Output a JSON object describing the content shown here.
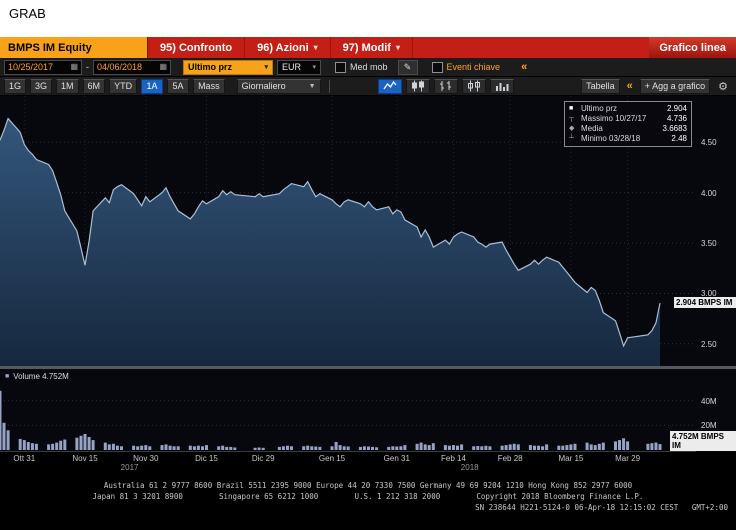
{
  "window": {
    "grab_label": "GRAB"
  },
  "colors": {
    "menu_red": "#c31f17",
    "security_amber": "#f7a219",
    "accent_amber": "#ffa028",
    "selected_blue": "#1a63c4",
    "area_top": "#33567b",
    "area_bottom": "#16283e",
    "line": "#a9c0d6",
    "volume_bar": "#97a3c4",
    "grid": "#30303c"
  },
  "icons": {
    "chevron_down_small": "▾",
    "chevron_down": "▼",
    "collapse": "«",
    "gear": "⚙",
    "pencil": "✎",
    "calendar": "▦",
    "plus": "+"
  },
  "menu_bar": {
    "security": "BMPS IM Equity",
    "items": [
      {
        "label": "95) Confronto"
      },
      {
        "label": "96) Azioni"
      },
      {
        "label": "97) Modif"
      }
    ],
    "right_label": "Grafico linea"
  },
  "toolbar": {
    "date_from": "10/25/2017",
    "date_separator": "-",
    "date_to": "04/06/2018",
    "price_field": "Ultimo prz",
    "currency": "EUR",
    "med_mob_label": "Med mob",
    "eventi_label": "Eventi chiave"
  },
  "period_bar": {
    "periods": [
      "1G",
      "3G",
      "1M",
      "6M",
      "YTD",
      "1A",
      "5A",
      "Mass"
    ],
    "selected_period": "1A",
    "frequency": "Giornaliero",
    "table_label": "Tabella",
    "add_chart_label": "Agg a grafico"
  },
  "chart": {
    "legend": [
      {
        "marker": "■",
        "label": "Ultimo prz",
        "value": "2.904"
      },
      {
        "marker": "┬",
        "label": "Massimo 10/27/17",
        "value": "4.736"
      },
      {
        "marker": "◆",
        "label": "Media",
        "value": "3.6683"
      },
      {
        "marker": "┴",
        "label": "Minimo 03/28/18",
        "value": "2.48"
      }
    ],
    "last_price_tag": "2.904 BMPS IM"
  },
  "volume_panel": {
    "marker": "■",
    "legend": "Volume 4.752M",
    "tag": "4.752M BMPS IM"
  },
  "footer": {
    "line1": "Australia 61 2 9777 8600 Brazil 5511 2395 9000 Europe 44 20 7330 7500 Germany 49 69 9204 1210 Hong Kong 852 2977 6000",
    "line2": "Japan 81 3 3201 8900        Singapore 65 6212 1000        U.S. 1 212 318 2000        Copyright 2018 Bloomberg Finance L.P.",
    "line3": "SN 238644 H221-5124-0 06-Apr-18 12:15:02 CEST   GMT+2:00"
  },
  "chart_data": {
    "type": "line",
    "title": "BMPS IM Equity — Grafico linea",
    "x_range": [
      "2017-10-25",
      "2018-04-06"
    ],
    "y_domain": [
      2.28,
      4.96
    ],
    "y_ticks": [
      4.5,
      4.0,
      3.5,
      3.0,
      2.5
    ],
    "x_ticks": [
      {
        "label": "Ott 31",
        "date": "2017-10-31"
      },
      {
        "label": "Nov 15",
        "date": "2017-11-15"
      },
      {
        "label": "Nov 30",
        "date": "2017-11-30"
      },
      {
        "label": "Dic 15",
        "date": "2017-12-15"
      },
      {
        "label": "Dic 29",
        "date": "2017-12-29"
      },
      {
        "label": "Gen 15",
        "date": "2018-01-15"
      },
      {
        "label": "Gen 31",
        "date": "2018-01-31"
      },
      {
        "label": "Feb 14",
        "date": "2018-02-14"
      },
      {
        "label": "Feb 28",
        "date": "2018-02-28"
      },
      {
        "label": "Mar 15",
        "date": "2018-03-15"
      },
      {
        "label": "Mar 29",
        "date": "2018-03-29"
      }
    ],
    "x_years": [
      {
        "label": "2017",
        "date": "2017-11-26"
      },
      {
        "label": "2018",
        "date": "2018-02-18"
      }
    ],
    "stats": {
      "last": 2.904,
      "high_date": "10/27/17",
      "high": 4.736,
      "mean": 3.6683,
      "low_date": "03/28/18",
      "low": 2.48
    },
    "series": [
      {
        "name": "Ultimo prz",
        "dates": [
          "2017-10-25",
          "2017-10-26",
          "2017-10-27",
          "2017-10-30",
          "2017-10-31",
          "2017-11-01",
          "2017-11-02",
          "2017-11-03",
          "2017-11-06",
          "2017-11-07",
          "2017-11-08",
          "2017-11-09",
          "2017-11-10",
          "2017-11-13",
          "2017-11-14",
          "2017-11-15",
          "2017-11-16",
          "2017-11-17",
          "2017-11-20",
          "2017-11-21",
          "2017-11-22",
          "2017-11-23",
          "2017-11-24",
          "2017-11-27",
          "2017-11-28",
          "2017-11-29",
          "2017-11-30",
          "2017-12-01",
          "2017-12-04",
          "2017-12-05",
          "2017-12-06",
          "2017-12-07",
          "2017-12-08",
          "2017-12-11",
          "2017-12-12",
          "2017-12-13",
          "2017-12-14",
          "2017-12-15",
          "2017-12-18",
          "2017-12-19",
          "2017-12-20",
          "2017-12-21",
          "2017-12-22",
          "2017-12-27",
          "2017-12-28",
          "2017-12-29",
          "2018-01-02",
          "2018-01-03",
          "2018-01-04",
          "2018-01-05",
          "2018-01-08",
          "2018-01-09",
          "2018-01-10",
          "2018-01-11",
          "2018-01-12",
          "2018-01-15",
          "2018-01-16",
          "2018-01-17",
          "2018-01-18",
          "2018-01-19",
          "2018-01-22",
          "2018-01-23",
          "2018-01-24",
          "2018-01-25",
          "2018-01-26",
          "2018-01-29",
          "2018-01-30",
          "2018-01-31",
          "2018-02-01",
          "2018-02-02",
          "2018-02-05",
          "2018-02-06",
          "2018-02-07",
          "2018-02-08",
          "2018-02-09",
          "2018-02-12",
          "2018-02-13",
          "2018-02-14",
          "2018-02-15",
          "2018-02-16",
          "2018-02-19",
          "2018-02-20",
          "2018-02-21",
          "2018-02-22",
          "2018-02-23",
          "2018-02-26",
          "2018-02-27",
          "2018-02-28",
          "2018-03-01",
          "2018-03-02",
          "2018-03-05",
          "2018-03-06",
          "2018-03-07",
          "2018-03-08",
          "2018-03-09",
          "2018-03-12",
          "2018-03-13",
          "2018-03-14",
          "2018-03-15",
          "2018-03-16",
          "2018-03-19",
          "2018-03-20",
          "2018-03-21",
          "2018-03-22",
          "2018-03-23",
          "2018-03-26",
          "2018-03-27",
          "2018-03-28",
          "2018-03-29",
          "2018-04-03",
          "2018-04-04",
          "2018-04-05",
          "2018-04-06"
        ],
        "values": [
          4.52,
          4.62,
          4.736,
          4.6,
          4.48,
          4.42,
          4.38,
          4.33,
          4.28,
          4.22,
          4.1,
          3.98,
          3.82,
          3.62,
          3.45,
          3.28,
          3.52,
          3.82,
          3.95,
          3.9,
          4.03,
          4.06,
          4.08,
          3.99,
          3.93,
          3.87,
          3.96,
          3.91,
          4.0,
          4.05,
          3.96,
          3.89,
          3.82,
          3.74,
          3.79,
          3.86,
          3.92,
          3.89,
          3.96,
          4.02,
          3.98,
          4.01,
          3.98,
          3.96,
          3.99,
          3.96,
          3.99,
          4.03,
          4.06,
          4.09,
          4.06,
          4.11,
          4.03,
          3.96,
          3.99,
          3.93,
          3.89,
          3.86,
          3.91,
          3.93,
          3.89,
          3.86,
          3.91,
          3.86,
          3.83,
          3.86,
          3.79,
          3.83,
          3.81,
          3.73,
          3.66,
          3.56,
          3.63,
          3.56,
          3.46,
          3.53,
          3.49,
          3.56,
          3.59,
          3.61,
          3.56,
          3.51,
          3.49,
          3.46,
          3.49,
          3.51,
          3.43,
          3.36,
          3.29,
          3.23,
          3.29,
          3.33,
          3.29,
          3.33,
          3.36,
          3.31,
          3.26,
          3.21,
          3.16,
          3.11,
          3.01,
          3.06,
          3.03,
          2.93,
          2.81,
          2.73,
          2.61,
          2.48,
          2.56,
          2.59,
          2.63,
          2.71,
          2.904
        ]
      }
    ],
    "volume": {
      "name": "Volume",
      "unit": "M",
      "y_ticks_m": [
        40,
        20
      ],
      "y_max": 64,
      "last": 4.752,
      "values": [
        48,
        22,
        16,
        9,
        8,
        6.5,
        5.5,
        5,
        4.5,
        5,
        6,
        7.5,
        8.5,
        10,
        11.5,
        13,
        10.5,
        8,
        6,
        4.5,
        5,
        3.5,
        3,
        3.5,
        3,
        3.5,
        4,
        3,
        4,
        4.5,
        3.5,
        3,
        3,
        3.5,
        3,
        3.5,
        3,
        4,
        3,
        3.5,
        2.5,
        2.5,
        2,
        1.8,
        2,
        1.8,
        2.5,
        3,
        3.5,
        3,
        3,
        3.5,
        3,
        2.8,
        2.5,
        3,
        6.5,
        4,
        3,
        2.8,
        2.5,
        3,
        2.8,
        2.5,
        2.2,
        2.5,
        3,
        2.8,
        3,
        4,
        5,
        6,
        4.5,
        4,
        5.5,
        4,
        3.5,
        4,
        3.5,
        4.5,
        3,
        3.2,
        3,
        3.4,
        3,
        3.5,
        4,
        4.5,
        5,
        4.5,
        4,
        3.5,
        3.5,
        3,
        4.5,
        3.5,
        3.5,
        4,
        4.5,
        5,
        6,
        4.5,
        4,
        5,
        6,
        7,
        8,
        9.5,
        7,
        5,
        5.5,
        6,
        4.752
      ]
    }
  }
}
